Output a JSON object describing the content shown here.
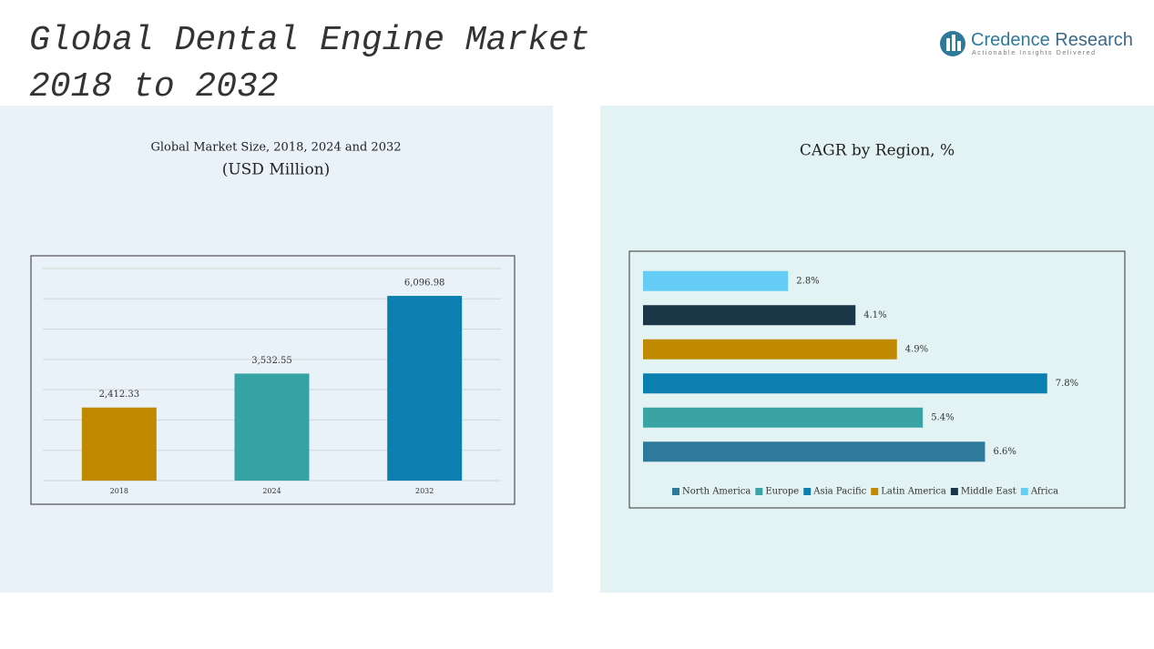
{
  "title_lines": [
    "Global Dental Engine Market",
    "2018 to 2032"
  ],
  "logo": {
    "name_part1": "Credence",
    "name_part2": "Research",
    "tagline": "Actionable Insights Delivered"
  },
  "chart_data": [
    {
      "type": "bar",
      "orientation": "vertical",
      "title": "Global Market Size, 2018, 2024 and 2032",
      "subtitle": "(USD Million)",
      "categories": [
        "2018",
        "2024",
        "2032"
      ],
      "values": [
        2412.33,
        3532.55,
        6096.98
      ],
      "value_labels": [
        "2,412.33",
        "3,532.55",
        "6,096.98"
      ],
      "colors": [
        "#c08a00",
        "#35a3a3",
        "#0b7fb0"
      ],
      "ylim": [
        0,
        7000
      ],
      "yticks": [
        0,
        1000,
        2000,
        3000,
        4000,
        5000,
        6000,
        7000
      ],
      "grid": true
    },
    {
      "type": "bar",
      "orientation": "horizontal",
      "title": "CAGR by Region, %",
      "categories": [
        "North America",
        "Europe",
        "Asia Pacific",
        "Latin America",
        "Middle East",
        "Africa"
      ],
      "values": [
        6.6,
        5.4,
        7.8,
        4.9,
        4.1,
        2.8
      ],
      "value_labels": [
        "6.6%",
        "5.4%",
        "7.8%",
        "4.9%",
        "4.1%",
        "2.8%"
      ],
      "colors": [
        "#2e7a9a",
        "#3aa3a3",
        "#0b7fb0",
        "#c08a00",
        "#1b3646",
        "#66cdf6"
      ],
      "xlim": [
        0,
        9
      ],
      "legend": "bottom"
    }
  ]
}
